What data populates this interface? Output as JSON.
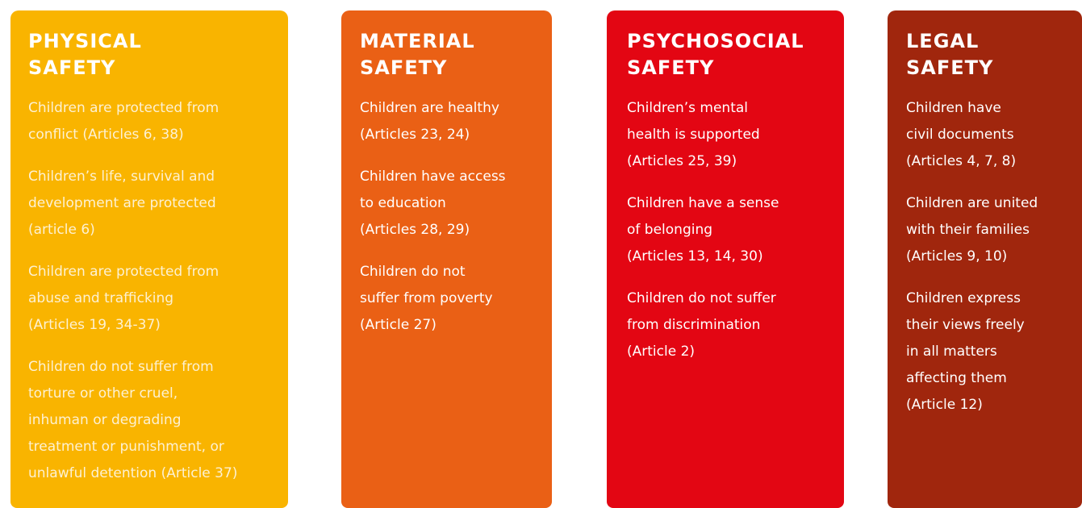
{
  "cards": [
    {
      "color": "#f9b400",
      "title": [
        "PHYSICAL",
        "SAFETY"
      ],
      "items": [
        [
          "Children are protected from",
          "conflict (Articles 6, 38)"
        ],
        [
          "Children’s life, survival and",
          "development are protected",
          "(article 6)"
        ],
        [
          "Children are protected from",
          "abuse and trafficking",
          "(Articles 19, 34-37)"
        ],
        [
          "Children do not suffer from",
          "torture or other cruel,",
          "inhuman or degrading",
          "treatment or punishment, or",
          "unlawful detention (Article 37)"
        ]
      ]
    },
    {
      "color": "#ea6015",
      "title": [
        "MATERIAL",
        "SAFETY"
      ],
      "items": [
        [
          "Children are healthy",
          "(Articles 23, 24)"
        ],
        [
          "Children have access",
          "to education",
          "(Articles 28, 29)"
        ],
        [
          "Children do not",
          "suffer from poverty",
          "(Article 27)"
        ]
      ]
    },
    {
      "color": "#e30613",
      "title": [
        "PSYCHOSOCIAL",
        "SAFETY"
      ],
      "items": [
        [
          "Children’s mental",
          "health is supported",
          "(Articles 25, 39)"
        ],
        [
          "Children have a sense",
          "of belonging",
          "(Articles 13, 14, 30)"
        ],
        [
          "Children do not suffer",
          "from discrimination",
          "(Article 2)"
        ]
      ]
    },
    {
      "color": "#a0260d",
      "title": [
        "LEGAL",
        "SAFETY"
      ],
      "items": [
        [
          "Children have",
          "civil documents",
          "(Articles 4, 7, 8)"
        ],
        [
          "Children are united",
          "with their families",
          "(Articles 9, 10)"
        ],
        [
          "Children express",
          "their views freely",
          "in all matters",
          "affecting them",
          "(Article 12)"
        ]
      ]
    }
  ]
}
